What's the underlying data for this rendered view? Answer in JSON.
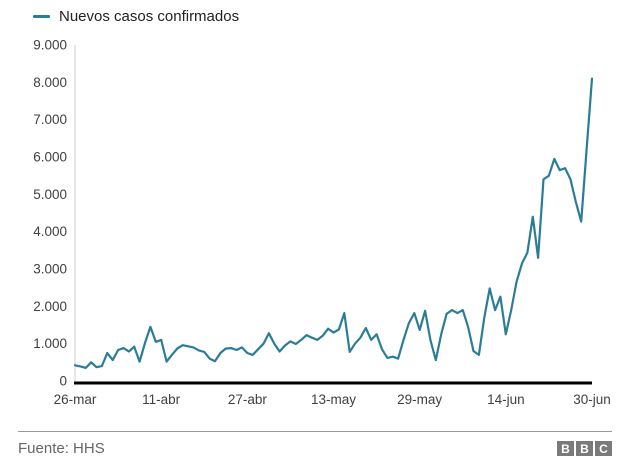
{
  "legend": {
    "label": "Nuevos casos confirmados"
  },
  "footer": {
    "source": "Fuente: HHS"
  },
  "logo": {
    "letters": [
      "B",
      "B",
      "C"
    ]
  },
  "colors": {
    "line": "#2b7d97",
    "x_axis": "#000000",
    "y_axis": "#cccccc",
    "tick_text": "#404040"
  },
  "chart_data": {
    "type": "line",
    "title": "",
    "series_name": "Nuevos casos confirmados",
    "grid": "off",
    "legend_position": "top-left",
    "ylim": [
      0,
      9000
    ],
    "y_tick_labels": [
      "0",
      "1.000",
      "2.000",
      "3.000",
      "4.000",
      "5.000",
      "6.000",
      "7.000",
      "8.000",
      "9.000"
    ],
    "x_tick_labels": [
      "26-mar",
      "11-abr",
      "27-abr",
      "13-may",
      "29-may",
      "14-jun",
      "30-jun"
    ],
    "x": [
      "26-mar",
      "27-mar",
      "28-mar",
      "29-mar",
      "30-mar",
      "31-mar",
      "1-abr",
      "2-abr",
      "3-abr",
      "4-abr",
      "5-abr",
      "6-abr",
      "7-abr",
      "8-abr",
      "9-abr",
      "10-abr",
      "11-abr",
      "12-abr",
      "13-abr",
      "14-abr",
      "15-abr",
      "16-abr",
      "17-abr",
      "18-abr",
      "19-abr",
      "20-abr",
      "21-abr",
      "22-abr",
      "23-abr",
      "24-abr",
      "25-abr",
      "26-abr",
      "27-abr",
      "28-abr",
      "29-abr",
      "30-abr",
      "1-may",
      "2-may",
      "3-may",
      "4-may",
      "5-may",
      "6-may",
      "7-may",
      "8-may",
      "9-may",
      "10-may",
      "11-may",
      "12-may",
      "13-may",
      "14-may",
      "15-may",
      "16-may",
      "17-may",
      "18-may",
      "19-may",
      "20-may",
      "21-may",
      "22-may",
      "23-may",
      "24-may",
      "25-may",
      "26-may",
      "27-may",
      "28-may",
      "29-may",
      "30-may",
      "31-may",
      "1-jun",
      "2-jun",
      "3-jun",
      "4-jun",
      "5-jun",
      "6-jun",
      "7-jun",
      "8-jun",
      "9-jun",
      "10-jun",
      "11-jun",
      "12-jun",
      "13-jun",
      "14-jun",
      "15-jun",
      "16-jun",
      "17-jun",
      "18-jun",
      "19-jun",
      "20-jun",
      "21-jun",
      "22-jun",
      "23-jun",
      "24-jun",
      "25-jun",
      "26-jun",
      "27-jun",
      "28-jun",
      "29-jun",
      "30-jun"
    ],
    "values": [
      420,
      390,
      350,
      500,
      370,
      400,
      750,
      560,
      830,
      880,
      790,
      920,
      520,
      1020,
      1450,
      1050,
      1100,
      520,
      700,
      870,
      960,
      930,
      900,
      820,
      780,
      600,
      530,
      750,
      870,
      880,
      830,
      900,
      750,
      700,
      850,
      1000,
      1280,
      1000,
      790,
      950,
      1060,
      990,
      1100,
      1230,
      1160,
      1100,
      1210,
      1400,
      1300,
      1380,
      1820,
      780,
      1000,
      1160,
      1420,
      1100,
      1250,
      850,
      620,
      650,
      600,
      1100,
      1550,
      1820,
      1370,
      1880,
      1100,
      560,
      1250,
      1800,
      1900,
      1820,
      1900,
      1450,
      800,
      700,
      1700,
      2480,
      1900,
      2260,
      1250,
      1900,
      2660,
      3150,
      3440,
      4400,
      3300,
      5400,
      5500,
      5950,
      5650,
      5700,
      5400,
      4800,
      4270,
      6200,
      8100
    ]
  }
}
